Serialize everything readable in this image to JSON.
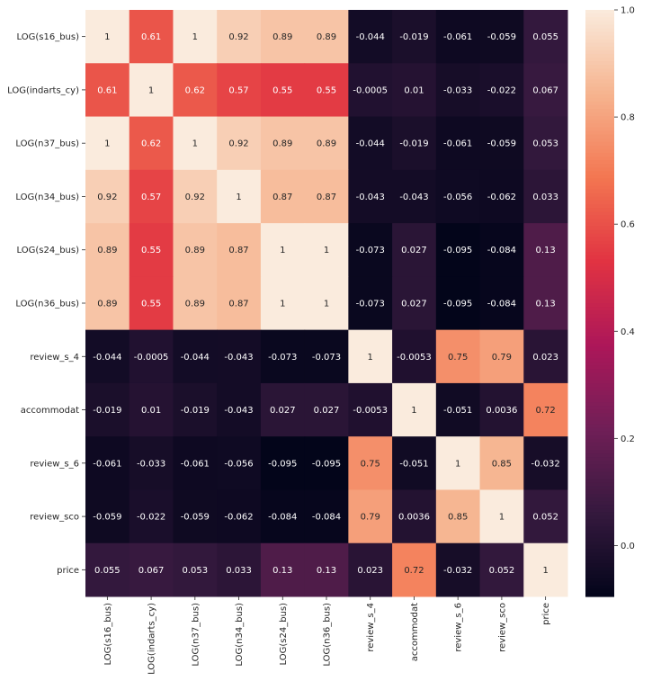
{
  "chart_data": {
    "type": "heatmap",
    "rows": [
      "LOG(s16_bus)",
      "LOG(indarts_cy)",
      "LOG(n37_bus)",
      "LOG(n34_bus)",
      "LOG(s24_bus)",
      "LOG(n36_bus)",
      "review_s_4",
      "accommodat",
      "review_s_6",
      "review_sco",
      "price"
    ],
    "columns": [
      "LOG(s16_bus)",
      "LOG(indarts_cy)",
      "LOG(n37_bus)",
      "LOG(n34_bus)",
      "LOG(s24_bus)",
      "LOG(n36_bus)",
      "review_s_4",
      "accommodat",
      "review_s_6",
      "review_sco",
      "price"
    ],
    "values": [
      [
        1,
        0.61,
        1,
        0.92,
        0.89,
        0.89,
        -0.044,
        -0.019,
        -0.061,
        -0.059,
        0.055
      ],
      [
        0.61,
        1,
        0.62,
        0.57,
        0.55,
        0.55,
        -0.0005,
        0.01,
        -0.033,
        -0.022,
        0.067
      ],
      [
        1,
        0.62,
        1,
        0.92,
        0.89,
        0.89,
        -0.044,
        -0.019,
        -0.061,
        -0.059,
        0.053
      ],
      [
        0.92,
        0.57,
        0.92,
        1,
        0.87,
        0.87,
        -0.043,
        -0.043,
        -0.056,
        -0.062,
        0.033
      ],
      [
        0.89,
        0.55,
        0.89,
        0.87,
        1,
        1,
        -0.073,
        0.027,
        -0.095,
        -0.084,
        0.13
      ],
      [
        0.89,
        0.55,
        0.89,
        0.87,
        1,
        1,
        -0.073,
        0.027,
        -0.095,
        -0.084,
        0.13
      ],
      [
        -0.044,
        -0.0005,
        -0.044,
        -0.043,
        -0.073,
        -0.073,
        1,
        -0.0053,
        0.75,
        0.79,
        0.023
      ],
      [
        -0.019,
        0.01,
        -0.019,
        -0.043,
        0.027,
        0.027,
        -0.0053,
        1,
        -0.051,
        0.0036,
        0.72
      ],
      [
        -0.061,
        -0.033,
        -0.061,
        -0.056,
        -0.095,
        -0.095,
        0.75,
        -0.051,
        1,
        0.85,
        -0.032
      ],
      [
        -0.059,
        -0.022,
        -0.059,
        -0.062,
        -0.084,
        -0.084,
        0.79,
        0.0036,
        0.85,
        1,
        0.052
      ],
      [
        0.055,
        0.067,
        0.053,
        0.033,
        0.13,
        0.13,
        0.023,
        0.72,
        -0.032,
        0.052,
        1
      ]
    ],
    "cell_labels": [
      [
        "1",
        "0.61",
        "1",
        "0.92",
        "0.89",
        "0.89",
        "-0.044",
        "-0.019",
        "-0.061",
        "-0.059",
        "0.055"
      ],
      [
        "0.61",
        "1",
        "0.62",
        "0.57",
        "0.55",
        "0.55",
        "-0.0005",
        "0.01",
        "-0.033",
        "-0.022",
        "0.067"
      ],
      [
        "1",
        "0.62",
        "1",
        "0.92",
        "0.89",
        "0.89",
        "-0.044",
        "-0.019",
        "-0.061",
        "-0.059",
        "0.053"
      ],
      [
        "0.92",
        "0.57",
        "0.92",
        "1",
        "0.87",
        "0.87",
        "-0.043",
        "-0.043",
        "-0.056",
        "-0.062",
        "0.033"
      ],
      [
        "0.89",
        "0.55",
        "0.89",
        "0.87",
        "1",
        "1",
        "-0.073",
        "0.027",
        "-0.095",
        "-0.084",
        "0.13"
      ],
      [
        "0.89",
        "0.55",
        "0.89",
        "0.87",
        "1",
        "1",
        "-0.073",
        "0.027",
        "-0.095",
        "-0.084",
        "0.13"
      ],
      [
        "-0.044",
        "-0.0005",
        "-0.044",
        "-0.043",
        "-0.073",
        "-0.073",
        "1",
        "-0.0053",
        "0.75",
        "0.79",
        "0.023"
      ],
      [
        "-0.019",
        "0.01",
        "-0.019",
        "-0.043",
        "0.027",
        "0.027",
        "-0.0053",
        "1",
        "-0.051",
        "0.0036",
        "0.72"
      ],
      [
        "-0.061",
        "-0.033",
        "-0.061",
        "-0.056",
        "-0.095",
        "-0.095",
        "0.75",
        "-0.051",
        "1",
        "0.85",
        "-0.032"
      ],
      [
        "-0.059",
        "-0.022",
        "-0.059",
        "-0.062",
        "-0.084",
        "-0.084",
        "0.79",
        "0.0036",
        "0.85",
        "1",
        "0.052"
      ],
      [
        "0.055",
        "0.067",
        "0.053",
        "0.033",
        "0.13",
        "0.13",
        "0.023",
        "0.72",
        "-0.032",
        "0.052",
        "1"
      ]
    ],
    "colorbar": {
      "vmin": -0.095,
      "vmax": 1,
      "ticks": [
        0.0,
        0.2,
        0.4,
        0.6,
        0.8,
        1.0
      ],
      "tick_labels": [
        "0.0",
        "0.2",
        "0.4",
        "0.6",
        "0.8",
        "1.0"
      ],
      "colormap": "rocket",
      "colormap_stops": [
        "#03051a",
        "#35193e",
        "#701f57",
        "#ad1759",
        "#e13342",
        "#f37651",
        "#f6b48f",
        "#faebdd"
      ]
    },
    "title": "",
    "xlabel": "",
    "ylabel": "",
    "grid": false,
    "legend": "colorbar-right"
  }
}
